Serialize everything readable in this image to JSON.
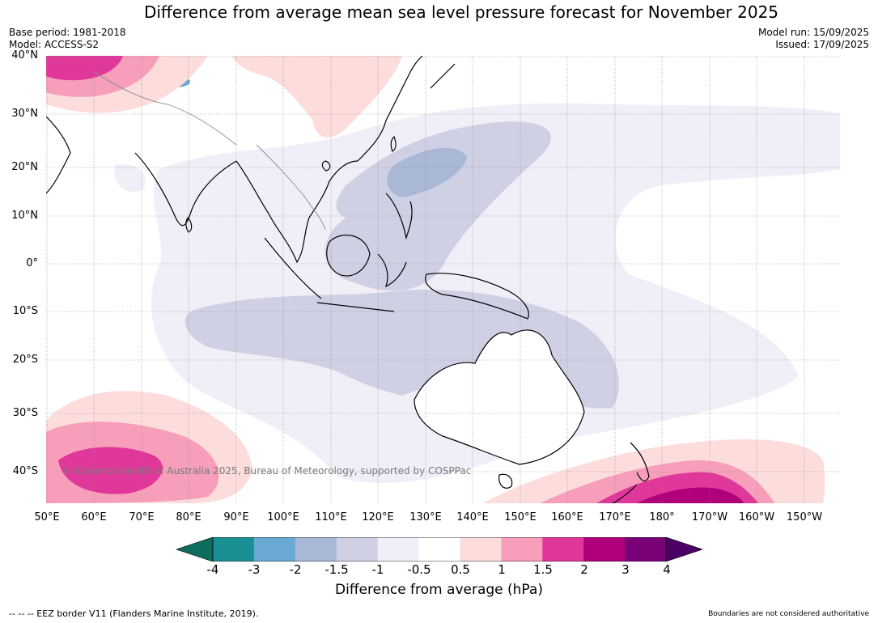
{
  "title": "Difference from average mean sea level pressure forecast for November 2025",
  "meta": {
    "base_period": "Base period: 1981-2018",
    "model": "Model: ACCESS-S2",
    "model_run": "Model run: 15/09/2025",
    "issued": "Issued: 17/09/2025"
  },
  "map": {
    "copyright": "© Commonwealth of Australia 2025, Bureau of Meteorology, supported by COSPPac",
    "lat_labels": [
      "40°N",
      "30°N",
      "20°N",
      "10°N",
      "0°",
      "10°S",
      "20°S",
      "30°S",
      "40°S"
    ],
    "lon_labels": [
      "50°E",
      "60°E",
      "70°E",
      "80°E",
      "90°E",
      "100°E",
      "110°E",
      "120°E",
      "130°E",
      "140°E",
      "150°E",
      "160°E",
      "170°E",
      "180°",
      "170°W",
      "160°W",
      "150°W"
    ]
  },
  "colorbar": {
    "ticks": [
      "-4",
      "-3",
      "-2",
      "-1.5",
      "-1",
      "-0.5",
      "0.5",
      "1",
      "1.5",
      "2",
      "3",
      "4"
    ],
    "colors": [
      "#1a8f94",
      "#6aaad2",
      "#a8b8d6",
      "#cfd0e4",
      "#f2eef7",
      "#ffffff",
      "#fddcdc",
      "#f79fba",
      "#e0389a",
      "#b0007a",
      "#7a0077"
    ],
    "min_extend_color": "#0d6e5e",
    "max_extend_color": "#4a0066",
    "label": "Difference from average (hPa)"
  },
  "footer": {
    "eez": "--  --  -- EEZ border V11 (Flanders Marine Institute, 2019).",
    "boundaries": "Boundaries are not considered authoritative"
  }
}
